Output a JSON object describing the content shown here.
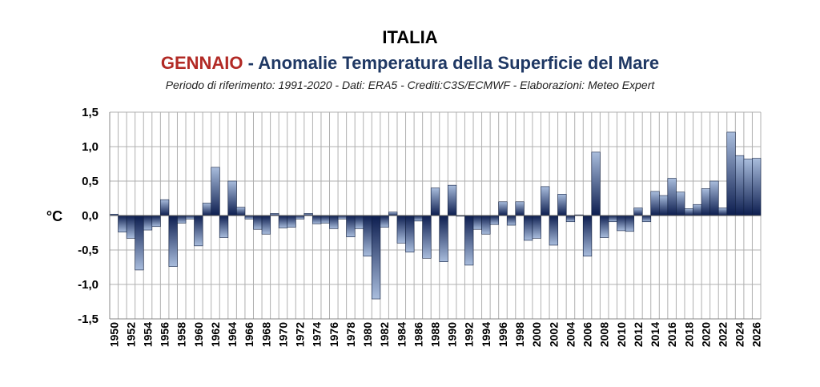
{
  "chart_data": {
    "type": "bar",
    "title": "ITALIA",
    "subtitle_month": "GENNAIO",
    "subtitle_sep": " - ",
    "subtitle_text": "Anomalie Temperatura della Superficie del Mare",
    "credits": "Periodo di riferimento: 1991-2020 - Dati: ERA5 - Crediti:C3S/ECMWF - Elaborazioni: Meteo Expert",
    "ylabel": "°C",
    "ylim": [
      -1.5,
      1.5
    ],
    "yticks": [
      "-1,5",
      "-1,0",
      "-0,5",
      "0,0",
      "0,5",
      "1,0",
      "1,5"
    ],
    "ytick_values": [
      -1.5,
      -1.0,
      -0.5,
      0.0,
      0.5,
      1.0,
      1.5
    ],
    "xlabels_shown": [
      "1950",
      "1952",
      "1954",
      "1956",
      "1958",
      "1960",
      "1962",
      "1964",
      "1966",
      "1968",
      "1970",
      "1972",
      "1974",
      "1976",
      "1978",
      "1980",
      "1982",
      "1984",
      "1986",
      "1988",
      "1990",
      "1992",
      "1994",
      "1996",
      "1998",
      "2000",
      "2002",
      "2004",
      "2006",
      "2008",
      "2010",
      "2012",
      "2014",
      "2016",
      "2018",
      "2020",
      "2022",
      "2024",
      "2026"
    ],
    "categories": [
      1950,
      1951,
      1952,
      1953,
      1954,
      1955,
      1956,
      1957,
      1958,
      1959,
      1960,
      1961,
      1962,
      1963,
      1964,
      1965,
      1966,
      1967,
      1968,
      1969,
      1970,
      1971,
      1972,
      1973,
      1974,
      1975,
      1976,
      1977,
      1978,
      1979,
      1980,
      1981,
      1982,
      1983,
      1984,
      1985,
      1986,
      1987,
      1988,
      1989,
      1990,
      1991,
      1992,
      1993,
      1994,
      1995,
      1996,
      1997,
      1998,
      1999,
      2000,
      2001,
      2002,
      2003,
      2004,
      2005,
      2006,
      2007,
      2008,
      2009,
      2010,
      2011,
      2012,
      2013,
      2014,
      2015,
      2016,
      2017,
      2018,
      2019,
      2020,
      2021,
      2022,
      2023,
      2024,
      2025,
      2026
    ],
    "values": [
      0.02,
      -0.24,
      -0.33,
      -0.79,
      -0.21,
      -0.16,
      0.23,
      -0.74,
      -0.11,
      -0.05,
      -0.44,
      0.18,
      0.7,
      -0.32,
      0.5,
      0.12,
      -0.05,
      -0.2,
      -0.27,
      0.03,
      -0.18,
      -0.17,
      -0.05,
      0.03,
      -0.12,
      -0.11,
      -0.19,
      -0.05,
      -0.31,
      -0.19,
      -0.59,
      -1.21,
      -0.17,
      0.05,
      -0.4,
      -0.53,
      -0.08,
      -0.62,
      0.4,
      -0.67,
      0.44,
      -0.01,
      -0.72,
      -0.2,
      -0.27,
      -0.13,
      0.2,
      -0.14,
      0.2,
      -0.36,
      -0.33,
      0.42,
      -0.43,
      0.31,
      -0.09,
      0.01,
      -0.59,
      0.92,
      -0.32,
      -0.09,
      -0.22,
      -0.23,
      0.11,
      -0.09,
      0.35,
      0.29,
      0.54,
      0.34,
      0.1,
      0.16,
      0.39,
      0.5,
      0.11,
      1.21,
      0.87,
      0.82,
      0.83
    ],
    "colors": {
      "bar_top": "#a9bddd",
      "bar_bottom": "#0c1d4f",
      "bar_stroke": "#0f1e40",
      "grid": "#b0b0b0",
      "axis": "#888888"
    }
  }
}
